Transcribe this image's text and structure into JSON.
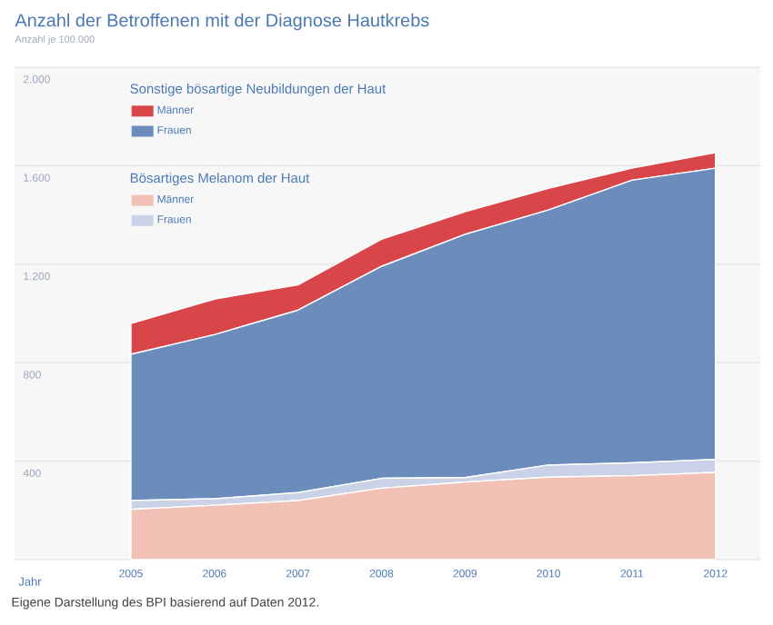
{
  "chart_data": {
    "type": "area",
    "title": "Anzahl der Betroffenen mit der Diagnose Hautkrebs",
    "ylabel": "Anzahl je 100.000",
    "xlabel": "Jahr",
    "categories": [
      "2005",
      "2006",
      "2007",
      "2008",
      "2009",
      "2010",
      "2011",
      "2012"
    ],
    "stacked": true,
    "series": [
      {
        "name": "Männer",
        "color": "#f1c1b6",
        "values": [
          204,
          221,
          240,
          290,
          315,
          335,
          341,
          354
        ]
      },
      {
        "name": "Frauen",
        "color": "#c9d2e6",
        "values": [
          36,
          26,
          32,
          40,
          18,
          49,
          52,
          53
        ]
      },
      {
        "name": "Frauen",
        "color": "#6c8cbc",
        "values": [
          594,
          667,
          741,
          861,
          988,
          1036,
          1148,
          1183
        ]
      },
      {
        "name": "Männer",
        "color": "#d9464a",
        "values": [
          125,
          144,
          103,
          110,
          92,
          88,
          49,
          63
        ]
      }
    ],
    "ylim": [
      0,
      2000
    ],
    "yticks": [
      {
        "value": 0,
        "label": null
      },
      400,
      800,
      {
        "value": 1200,
        "label": "1.200"
      },
      {
        "value": 1600,
        "label": "1.600"
      },
      {
        "value": 2000,
        "label": "2.000"
      }
    ],
    "grid": "y",
    "legend": "top left",
    "annotations": [
      "Sonstige bösartige Neubildungen der Haut",
      "Bösartiges Melanom der Haut",
      "Eigene Darstellung des BPI basierend auf Daten 2012."
    ]
  }
}
